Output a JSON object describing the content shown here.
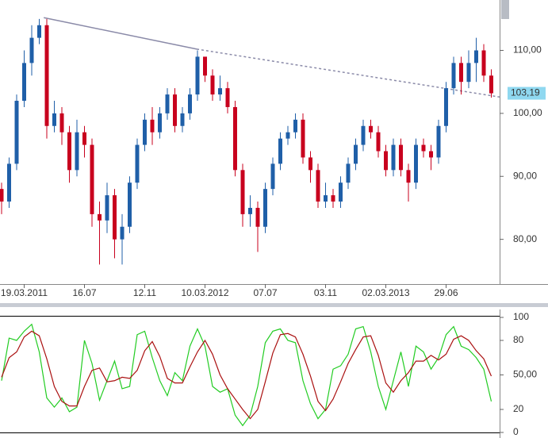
{
  "chart_data": [
    {
      "type": "candlestick",
      "categories": [
        null,
        null,
        null,
        "19.03.2011",
        null,
        null,
        null,
        null,
        null,
        null,
        null,
        "16.07",
        null,
        null,
        null,
        null,
        null,
        null,
        null,
        "12.11",
        null,
        null,
        null,
        null,
        null,
        null,
        null,
        "10.03.2012",
        null,
        null,
        null,
        null,
        null,
        null,
        null,
        "07.07",
        null,
        null,
        null,
        null,
        null,
        null,
        null,
        "03.11",
        null,
        null,
        null,
        null,
        null,
        null,
        null,
        "02.03.2013",
        null,
        null,
        null,
        null,
        null,
        null,
        null,
        "29.06",
        null,
        null,
        null,
        null,
        null,
        null
      ],
      "open": [
        88,
        86,
        92,
        102,
        108,
        112,
        114,
        98,
        100,
        97,
        91,
        97,
        95,
        84,
        83,
        87,
        80,
        82,
        89,
        95,
        99,
        97,
        100,
        103,
        98,
        100,
        103,
        109,
        106,
        103,
        104,
        101,
        91,
        84,
        85,
        82,
        88,
        92,
        96,
        97,
        99,
        93,
        91,
        86,
        87,
        86,
        89,
        92,
        95,
        98,
        97,
        94,
        91,
        95,
        91,
        89,
        95,
        94,
        93,
        98,
        104,
        108,
        105,
        108,
        110,
        106
      ],
      "high": [
        89,
        93,
        103,
        110,
        114,
        115,
        115,
        102,
        101,
        98,
        99,
        98,
        96,
        86,
        89,
        88,
        84,
        90,
        96,
        100,
        101,
        101,
        104,
        104,
        101,
        104,
        110,
        109,
        107,
        106,
        105,
        102,
        92,
        87,
        86,
        89,
        93,
        97,
        98,
        100,
        100,
        94,
        92,
        89,
        88,
        90,
        93,
        96,
        99,
        99,
        98,
        95,
        96,
        96,
        92,
        96,
        96,
        95,
        99,
        105,
        109,
        109,
        110,
        112,
        111,
        107
      ],
      "low": [
        84,
        85,
        91,
        101,
        106,
        111,
        96,
        97,
        95,
        89,
        90,
        93,
        82,
        76,
        81,
        77,
        76,
        81,
        88,
        94,
        95,
        96,
        99,
        97,
        97,
        99,
        102,
        105,
        102,
        102,
        100,
        90,
        82,
        82,
        78,
        81,
        87,
        91,
        95,
        96,
        92,
        89,
        85,
        85,
        85,
        85,
        88,
        91,
        94,
        96,
        93,
        90,
        90,
        90,
        86,
        88,
        93,
        91,
        92,
        97,
        103,
        103,
        104,
        105,
        105,
        102.5
      ],
      "close": [
        86,
        92,
        102,
        108,
        112,
        114,
        98,
        100,
        97,
        91,
        97,
        95,
        84,
        83,
        87,
        80,
        82,
        89,
        95,
        99,
        97,
        100,
        103,
        98,
        100,
        103,
        109,
        106,
        103,
        104,
        101,
        91,
        84,
        85,
        82,
        88,
        92,
        96,
        97,
        99,
        93,
        91,
        86,
        87,
        86,
        89,
        92,
        95,
        98,
        97,
        94,
        91,
        95,
        91,
        89,
        95,
        94,
        93,
        98,
        104,
        108,
        105,
        108,
        110,
        106,
        103.19
      ],
      "up_color": "#1f5fa8",
      "down_color": "#c8001e",
      "ylim": [
        72.9,
        118.0
      ],
      "yticks": [
        {
          "value": 80,
          "label": "80,00"
        },
        {
          "value": 90,
          "label": "90,00"
        },
        {
          "value": 100,
          "label": "100,00"
        },
        {
          "value": 110,
          "label": "110,00"
        }
      ],
      "last_price_label": "103,19",
      "trendline": {
        "color": "#8a8aa8",
        "x": [
          5.6,
          25.9,
          66.1
        ],
        "values": [
          115.2,
          110.2,
          102.6
        ]
      }
    },
    {
      "type": "line",
      "ylim": [
        0,
        100
      ],
      "yticks": [
        0,
        20,
        {
          "value": 50,
          "label": "50,00"
        },
        80,
        100
      ],
      "series": [
        {
          "color": "#22cc22",
          "values": [
            45,
            82,
            80,
            88,
            94,
            70,
            30,
            22,
            30,
            18,
            22,
            80,
            60,
            28,
            45,
            62,
            38,
            40,
            85,
            88,
            65,
            45,
            32,
            52,
            45,
            75,
            90,
            75,
            40,
            35,
            38,
            15,
            6,
            15,
            40,
            78,
            88,
            90,
            80,
            78,
            45,
            25,
            12,
            20,
            55,
            58,
            68,
            90,
            92,
            70,
            40,
            20,
            45,
            70,
            40,
            75,
            70,
            55,
            65,
            85,
            92,
            75,
            72,
            65,
            55,
            27
          ]
        },
        {
          "color": "#aa1010",
          "values": [
            48,
            65,
            70,
            83,
            88,
            84,
            64,
            40,
            27,
            23,
            23,
            40,
            54,
            56,
            44,
            45,
            48,
            47,
            54,
            71,
            79,
            66,
            47,
            43,
            43,
            57,
            70,
            80,
            68,
            50,
            38,
            29,
            20,
            12,
            20,
            44,
            69,
            85,
            86,
            83,
            68,
            49,
            27,
            19,
            29,
            44,
            60,
            72,
            83,
            84,
            67,
            43,
            35,
            45,
            52,
            62,
            62,
            67,
            63,
            68,
            81,
            84,
            80,
            71,
            64,
            49
          ]
        }
      ]
    }
  ]
}
